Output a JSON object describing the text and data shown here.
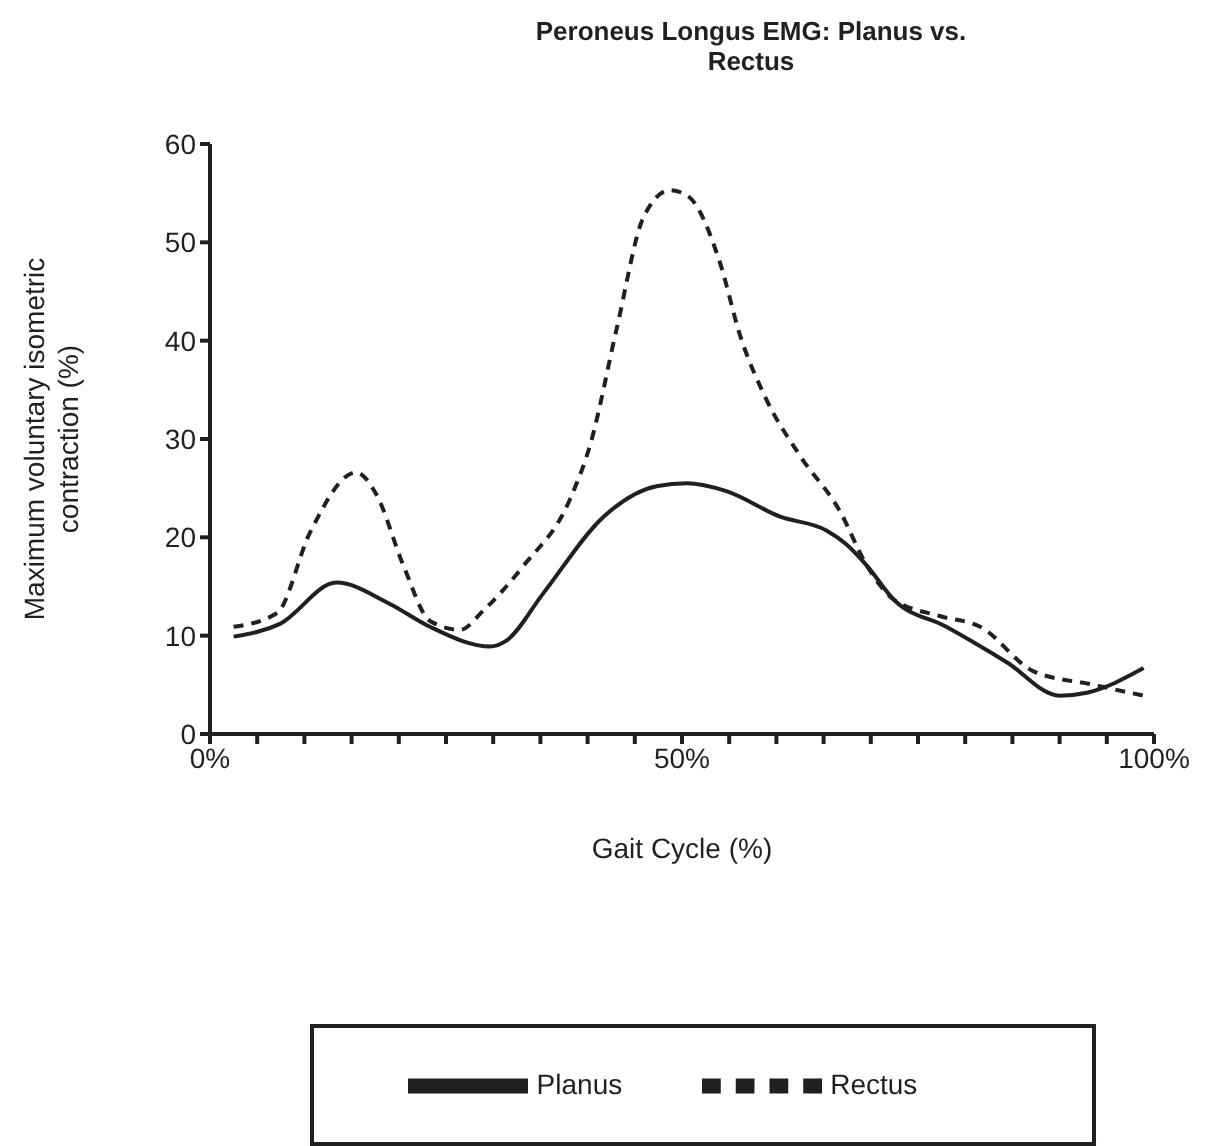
{
  "chart_data": {
    "type": "line",
    "title": "Peroneus Longus EMG: Planus vs. Rectus",
    "xlabel": "Gait Cycle (%)",
    "ylabel": "Maximum voluntary isometric contraction (%)",
    "xlim": [
      0,
      100
    ],
    "xticks": [
      {
        "value": 0,
        "label": "0%"
      },
      {
        "value": 5,
        "label": null
      },
      {
        "value": 10,
        "label": null
      },
      {
        "value": 15,
        "label": null
      },
      {
        "value": 20,
        "label": null
      },
      {
        "value": 25,
        "label": null
      },
      {
        "value": 30,
        "label": null
      },
      {
        "value": 35,
        "label": null
      },
      {
        "value": 40,
        "label": null
      },
      {
        "value": 45,
        "label": null
      },
      {
        "value": 50,
        "label": "50%"
      },
      {
        "value": 55,
        "label": null
      },
      {
        "value": 60,
        "label": null
      },
      {
        "value": 65,
        "label": null
      },
      {
        "value": 70,
        "label": null
      },
      {
        "value": 75,
        "label": null
      },
      {
        "value": 80,
        "label": null
      },
      {
        "value": 85,
        "label": null
      },
      {
        "value": 90,
        "label": null
      },
      {
        "value": 95,
        "label": null
      },
      {
        "value": 100,
        "label": "100%"
      }
    ],
    "ylim": [
      0,
      60
    ],
    "yticks": [
      0,
      10,
      20,
      30,
      40,
      50,
      60
    ],
    "grid": false,
    "legend": "bottom",
    "marker": "none",
    "series": [
      {
        "name": "Planus",
        "color": "#231f20",
        "line_style": "solid",
        "x": [
          2.5,
          7.4,
          13.4,
          19.1,
          23.3,
          29.7,
          31.4,
          35.3,
          41.7,
          47.3,
          50.5,
          54.7,
          60.4,
          65.3,
          67.4,
          69.6,
          72.4,
          78,
          84.4,
          90,
          92.9,
          98.9
        ],
        "values": [
          9.9,
          11.2,
          15.4,
          13.2,
          10.9,
          8.9,
          9.5,
          14.3,
          22.1,
          25.2,
          25.5,
          24.7,
          22.1,
          20.7,
          19.3,
          17.1,
          13.7,
          10.9,
          7.3,
          3.9,
          4.2,
          6.7
        ]
      },
      {
        "name": "Rectus",
        "color": "#231f20",
        "line_style": "dashed",
        "x": [
          2.5,
          7.1,
          10.6,
          15.5,
          17.6,
          20.5,
          23.3,
          26.5,
          29,
          33.2,
          38.1,
          40.3,
          43.1,
          45.9,
          48.7,
          50.5,
          54,
          56.1,
          59,
          62.5,
          66.7,
          69.6,
          72.4,
          77.3,
          81.6,
          87.2,
          93.6,
          98.9
        ],
        "values": [
          10.9,
          12.3,
          20.5,
          26.6,
          24.4,
          17.1,
          11.5,
          10.6,
          12.6,
          17.1,
          23.8,
          29.5,
          41.3,
          52.5,
          55.3,
          54.8,
          48,
          40.7,
          33.9,
          28.3,
          22.7,
          17.1,
          13.7,
          12,
          10.9,
          6.4,
          5,
          3.9
        ]
      }
    ]
  }
}
